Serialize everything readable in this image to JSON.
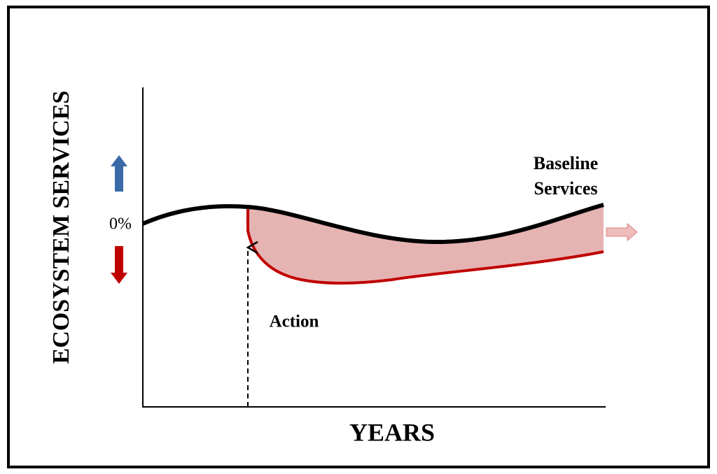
{
  "axes": {
    "y_label": "ECOSYSTEM SERVICES",
    "x_label": "YEARS"
  },
  "labels": {
    "zero": "0%",
    "baseline": [
      "Baseline",
      "Services"
    ],
    "action": "Action"
  }
}
